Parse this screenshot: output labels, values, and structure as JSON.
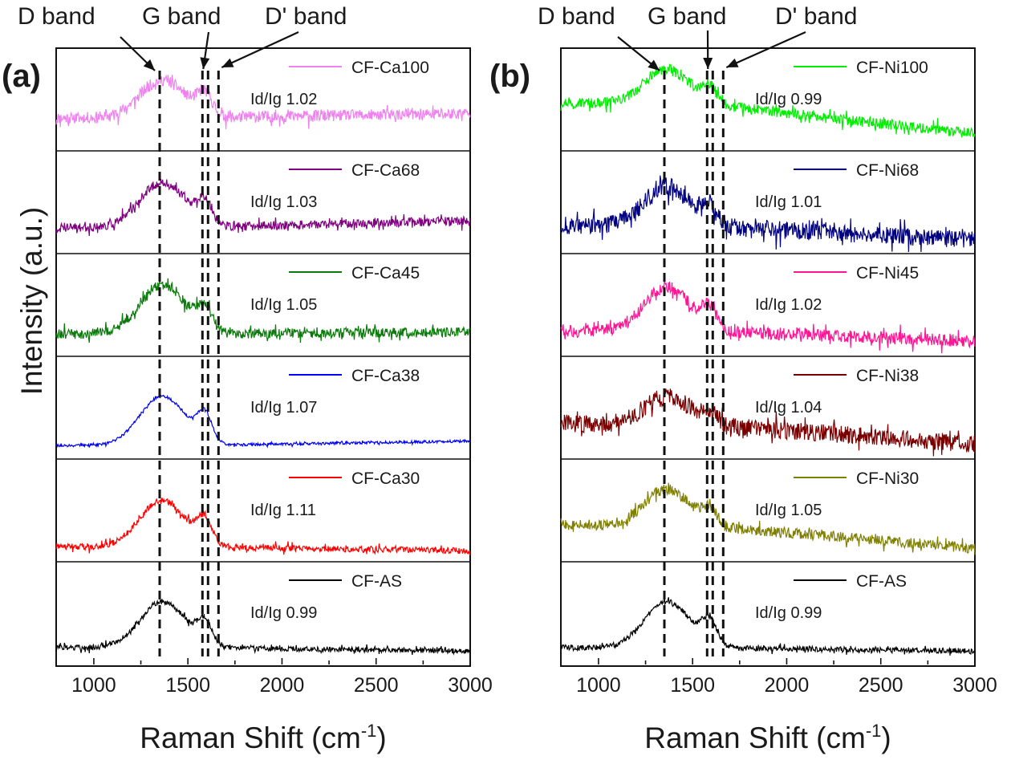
{
  "figure": {
    "ylabel": "Intensity (a.u.)",
    "xlabel_main": "Raman Shift (cm",
    "xlabel_sup": "-1",
    "xlabel_close": ")"
  },
  "band_labels": {
    "d": "D band",
    "g": "G band",
    "dp": "D' band"
  },
  "chart_data": [
    {
      "type": "line",
      "panel": "(a)",
      "title": "",
      "xlabel": "Raman Shift (cm-1)",
      "ylabel": "Intensity (a.u.)",
      "xlim": [
        800,
        3000
      ],
      "xticks": [
        1000,
        1500,
        2000,
        2500,
        3000
      ],
      "grid": false,
      "legend_position": "top-right of each stacked sub-panel",
      "band_positions": {
        "D band": 1350,
        "G band": 1590,
        "D' band": 1620
      },
      "series": [
        {
          "name": "CF-Ca100",
          "ratio": "Id/Ig 1.02",
          "color": "#ee82ee",
          "d_peak": 0.42,
          "g_peak": 0.4,
          "baseline": 0.3,
          "tail": 0.35,
          "noise": 0.065,
          "x": [
            800,
            1000,
            1200,
            1350,
            1500,
            1590,
            1700,
            2000,
            2500,
            3000
          ],
          "y": [
            0.3,
            0.31,
            0.42,
            0.63,
            0.55,
            0.62,
            0.42,
            0.36,
            0.35,
            0.35
          ]
        },
        {
          "name": "CF-Ca68",
          "ratio": "Id/Ig 1.03",
          "color": "#800080",
          "d_peak": 0.5,
          "g_peak": 0.44,
          "baseline": 0.22,
          "tail": 0.3,
          "noise": 0.05,
          "x": [
            800,
            1000,
            1200,
            1350,
            1500,
            1590,
            1700,
            2000,
            2500,
            3000
          ],
          "y": [
            0.22,
            0.26,
            0.48,
            0.72,
            0.6,
            0.66,
            0.35,
            0.28,
            0.32,
            0.27
          ]
        },
        {
          "name": "CF-Ca45",
          "ratio": "Id/Ig 1.05",
          "color": "#0a7a0a",
          "d_peak": 0.55,
          "g_peak": 0.42,
          "baseline": 0.18,
          "tail": 0.2,
          "noise": 0.055,
          "x": [
            800,
            1000,
            1200,
            1350,
            1500,
            1590,
            1700,
            2000,
            2500,
            3000
          ],
          "y": [
            0.18,
            0.22,
            0.45,
            0.73,
            0.58,
            0.62,
            0.3,
            0.22,
            0.21,
            0.2
          ]
        },
        {
          "name": "CF-Ca38",
          "ratio": "Id/Ig 1.07",
          "color": "#0000ff",
          "d_peak": 0.55,
          "g_peak": 0.52,
          "baseline": 0.08,
          "tail": 0.13,
          "noise": 0.015,
          "x": [
            800,
            1000,
            1200,
            1350,
            1500,
            1590,
            1700,
            2000,
            2500,
            3000
          ],
          "y": [
            0.08,
            0.13,
            0.35,
            0.63,
            0.4,
            0.6,
            0.15,
            0.12,
            0.13,
            0.13
          ]
        },
        {
          "name": "CF-Ca30",
          "ratio": "Id/Ig 1.11",
          "color": "#ff0000",
          "d_peak": 0.52,
          "g_peak": 0.46,
          "baseline": 0.1,
          "tail": 0.05,
          "noise": 0.035,
          "x": [
            800,
            1000,
            1200,
            1350,
            1500,
            1590,
            1700,
            2000,
            2500,
            3000
          ],
          "y": [
            0.1,
            0.14,
            0.38,
            0.62,
            0.44,
            0.58,
            0.15,
            0.08,
            0.06,
            0.05
          ]
        },
        {
          "name": "CF-AS",
          "ratio": "Id/Ig 0.99",
          "color": "#000000",
          "d_peak": 0.52,
          "g_peak": 0.45,
          "baseline": 0.12,
          "tail": 0.08,
          "noise": 0.03,
          "x": [
            800,
            1000,
            1200,
            1350,
            1500,
            1590,
            1700,
            2000,
            2500,
            3000
          ],
          "y": [
            0.12,
            0.17,
            0.42,
            0.64,
            0.48,
            0.6,
            0.18,
            0.09,
            0.08,
            0.08
          ]
        }
      ]
    },
    {
      "type": "line",
      "panel": "(b)",
      "title": "",
      "xlabel": "Raman Shift (cm-1)",
      "ylabel": "",
      "xlim": [
        800,
        3000
      ],
      "xticks": [
        1000,
        1500,
        2000,
        2500,
        3000
      ],
      "grid": false,
      "legend_position": "top-right of each stacked sub-panel",
      "band_positions": {
        "D band": 1350,
        "G band": 1590,
        "D' band": 1620
      },
      "series": [
        {
          "name": "CF-Ni100",
          "ratio": "Id/Ig 0.99",
          "color": "#00ee00",
          "d_peak": 0.4,
          "g_peak": 0.3,
          "baseline": 0.48,
          "tail": 0.12,
          "noise": 0.06,
          "x": [
            800,
            1000,
            1200,
            1350,
            1500,
            1590,
            1700,
            2000,
            2500,
            3000
          ],
          "y": [
            0.48,
            0.52,
            0.68,
            0.8,
            0.7,
            0.72,
            0.45,
            0.35,
            0.2,
            0.12
          ]
        },
        {
          "name": "CF-Ni68",
          "ratio": "Id/Ig 1.01",
          "color": "#000080",
          "d_peak": 0.45,
          "g_peak": 0.3,
          "baseline": 0.25,
          "tail": 0.08,
          "noise": 0.1,
          "x": [
            800,
            1000,
            1200,
            1350,
            1500,
            1590,
            1700,
            2000,
            2500,
            3000
          ],
          "y": [
            0.25,
            0.35,
            0.62,
            0.75,
            0.68,
            0.55,
            0.35,
            0.25,
            0.14,
            0.08
          ]
        },
        {
          "name": "CF-Ni45",
          "ratio": "Id/Ig 1.02",
          "color": "#ff1493",
          "d_peak": 0.5,
          "g_peak": 0.38,
          "baseline": 0.22,
          "tail": 0.1,
          "noise": 0.07,
          "x": [
            800,
            1000,
            1200,
            1350,
            1500,
            1590,
            1700,
            2000,
            2500,
            3000
          ],
          "y": [
            0.22,
            0.32,
            0.6,
            0.73,
            0.68,
            0.62,
            0.25,
            0.16,
            0.12,
            0.1
          ]
        },
        {
          "name": "CF-Ni38",
          "ratio": "Id/Ig 1.04",
          "color": "#7a0000",
          "d_peak": 0.32,
          "g_peak": 0.22,
          "baseline": 0.33,
          "tail": 0.1,
          "noise": 0.1,
          "x": [
            800,
            1000,
            1200,
            1350,
            1500,
            1590,
            1700,
            2000,
            2500,
            3000
          ],
          "y": [
            0.33,
            0.38,
            0.55,
            0.65,
            0.52,
            0.52,
            0.38,
            0.3,
            0.2,
            0.1
          ]
        },
        {
          "name": "CF-Ni30",
          "ratio": "Id/Ig 1.05",
          "color": "#808000",
          "d_peak": 0.42,
          "g_peak": 0.3,
          "baseline": 0.35,
          "tail": 0.08,
          "noise": 0.06,
          "x": [
            800,
            1000,
            1200,
            1350,
            1500,
            1590,
            1700,
            2000,
            2500,
            3000
          ],
          "y": [
            0.35,
            0.42,
            0.62,
            0.75,
            0.62,
            0.62,
            0.4,
            0.3,
            0.18,
            0.08
          ]
        },
        {
          "name": "CF-AS",
          "ratio": "Id/Ig 0.99",
          "color": "#000000",
          "d_peak": 0.52,
          "g_peak": 0.45,
          "baseline": 0.12,
          "tail": 0.08,
          "noise": 0.03,
          "x": [
            800,
            1000,
            1200,
            1350,
            1500,
            1590,
            1700,
            2000,
            2500,
            3000
          ],
          "y": [
            0.12,
            0.17,
            0.42,
            0.64,
            0.48,
            0.6,
            0.18,
            0.09,
            0.08,
            0.08
          ]
        }
      ]
    }
  ]
}
